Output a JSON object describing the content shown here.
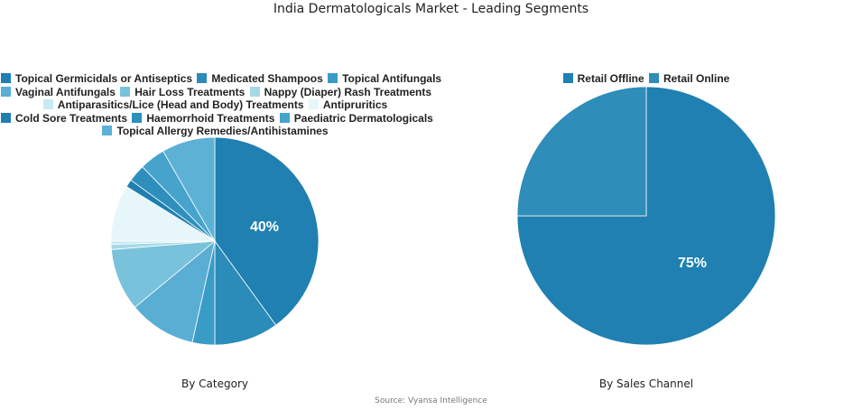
{
  "title": "India Dermatologicals Market - Leading Segments",
  "source": "Source: Vyansa Intelligence",
  "chart_data": [
    {
      "type": "pie",
      "title": "By Category",
      "categories": [
        "Topical Germicidals or Antiseptics",
        "Medicated Shampoos",
        "Topical Antifungals",
        "Vaginal Antifungals",
        "Hair Loss Treatments",
        "Nappy (Diaper) Rash Treatments",
        "Antiparasitics/Lice (Head and Body) Treatments",
        "Antipruritics",
        "Cold Sore Treatments",
        "Haemorrhoid Treatments",
        "Paediatric Dermatologicals",
        "Topical Allergy Remedies/Antihistamines"
      ],
      "values": [
        40,
        10,
        3.5,
        10.5,
        9.7,
        0.8,
        0.5,
        8.8,
        1.2,
        2.7,
        4,
        8.3
      ],
      "colors": [
        "#1f80b1",
        "#2b8bb9",
        "#3a9cc6",
        "#5aaed3",
        "#79c2dc",
        "#a6d9e8",
        "#c9e9f2",
        "#e7f6fa",
        "#1e7fb0",
        "#2e8fbd",
        "#45a3cc",
        "#5db1d5"
      ],
      "labels_shown": {
        "0": "40%"
      },
      "legend_position": "top"
    },
    {
      "type": "pie",
      "title": "By Sales Channel",
      "categories": [
        "Retail Offline",
        "Retail Online"
      ],
      "values": [
        75,
        25
      ],
      "colors": [
        "#1f80b1",
        "#2e8db9"
      ],
      "labels_shown": {
        "0": "75%"
      },
      "legend_position": "top"
    }
  ]
}
